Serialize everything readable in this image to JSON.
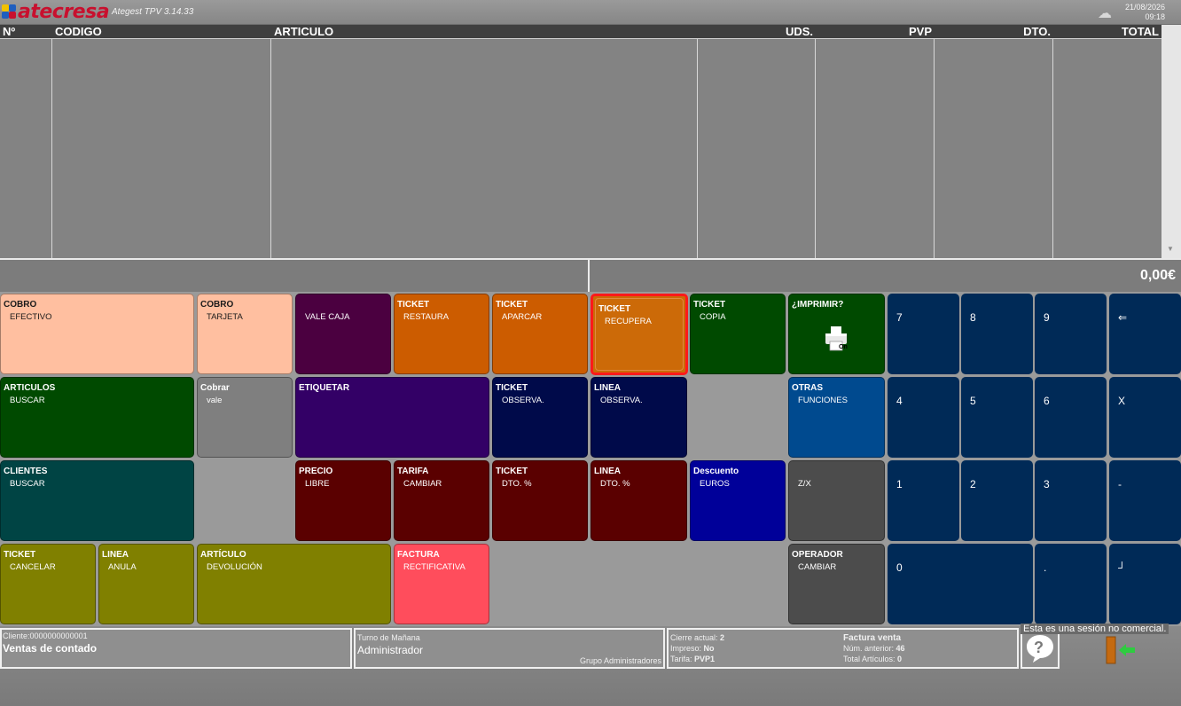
{
  "header": {
    "brand": "atecresa",
    "version": "Ategest TPV 3.14.33",
    "date": "21/08/2026",
    "time": "09:18"
  },
  "table": {
    "columns": [
      "Nº",
      "CODIGO",
      "ARTICULO",
      "UDS.",
      "PVP",
      "DTO.",
      "TOTAL"
    ]
  },
  "totals": {
    "total": "0,00€"
  },
  "buttons": {
    "cobro_efectivo": {
      "t1": "COBRO",
      "t2": "EFECTIVO",
      "color": "#ffbfa0"
    },
    "cobro_tarjeta": {
      "t1": "COBRO",
      "t2": "TARJETA",
      "color": "#ffbfa0"
    },
    "vale_caja": {
      "t1": "",
      "t2": "VALE CAJA",
      "color": "#4b0040"
    },
    "ticket_restaura": {
      "t1": "TICKET",
      "t2": "RESTAURA",
      "color": "#cc5c00"
    },
    "ticket_aparcar": {
      "t1": "TICKET",
      "t2": "APARCAR",
      "color": "#cc5c00"
    },
    "ticket_recupera": {
      "t1": "TICKET",
      "t2": "RECUPERA",
      "color": "#cc6a08"
    },
    "ticket_copia": {
      "t1": "TICKET",
      "t2": "COPIA",
      "color": "#004a00"
    },
    "imprimir": {
      "t1": "¿IMPRIMIR?",
      "t2": "",
      "color": "#004a00"
    },
    "articulos_buscar": {
      "t1": "ARTICULOS",
      "t2": "BUSCAR",
      "color": "#004a00"
    },
    "cobrar_vale": {
      "t1": "Cobrar",
      "t2": "vale",
      "color": "#7f7f7f"
    },
    "etiquetar": {
      "t1": "ETIQUETAR",
      "t2": "",
      "color": "#330066"
    },
    "ticket_observa": {
      "t1": "TICKET",
      "t2": "OBSERVA.",
      "color": "#000a4a"
    },
    "linea_observa": {
      "t1": "LINEA",
      "t2": "OBSERVA.",
      "color": "#000a4a"
    },
    "otras_funciones": {
      "t1": "OTRAS",
      "t2": "FUNCIONES",
      "color": "#004a8f"
    },
    "clientes_buscar": {
      "t1": "CLIENTES",
      "t2": "BUSCAR",
      "color": "#004444"
    },
    "precio_libre": {
      "t1": "PRECIO",
      "t2": "LIBRE",
      "color": "#5a0000"
    },
    "tarifa_cambiar": {
      "t1": "TARIFA",
      "t2": "CAMBIAR",
      "color": "#5a0000"
    },
    "ticket_dto": {
      "t1": "TICKET",
      "t2": "DTO. %",
      "color": "#5a0000"
    },
    "linea_dto": {
      "t1": "LINEA",
      "t2": "DTO. %",
      "color": "#5a0000"
    },
    "descuento_euros": {
      "t1": "Descuento",
      "t2": "EUROS",
      "color": "#000099"
    },
    "zx": {
      "t1": "",
      "t2": "Z/X",
      "color": "#4c4c4c"
    },
    "ticket_cancelar": {
      "t1": "TICKET",
      "t2": "CANCELAR",
      "color": "#808000"
    },
    "linea_anula": {
      "t1": "LINEA",
      "t2": "ANULA",
      "color": "#808000"
    },
    "articulo_devolucion": {
      "t1": "ARTÍCULO",
      "t2": "DEVOLUCIÓN",
      "color": "#808000"
    },
    "factura_rectificativa": {
      "t1": "FACTURA",
      "t2": "RECTIFICATIVA",
      "color": "#ff4d5c"
    },
    "operador_cambiar": {
      "t1": "OPERADOR",
      "t2": "CAMBIAR",
      "color": "#4c4c4c"
    }
  },
  "numpad": [
    "7",
    "8",
    "9",
    "⇐",
    "4",
    "5",
    "6",
    "X",
    "1",
    "2",
    "3",
    "-",
    "0",
    ".",
    "┘"
  ],
  "footer": {
    "client_label": "Cliente:0000000000001",
    "client_name": "Ventas de contado",
    "turno": "Turno de Mañana",
    "user": "Administrador",
    "group": "Grupo Administradores",
    "cierre_label": "Cierre actual:",
    "cierre_value": "2",
    "impreso_label": "Impreso:",
    "impreso_value": "No",
    "tarifa_label": "Tarifa:",
    "tarifa_value": "PVP1",
    "factura": "Factura venta",
    "num_anterior_label": "Núm. anterior:",
    "num_anterior_value": "46",
    "total_articulos_label": "Total Artículos:",
    "total_articulos_value": "0",
    "notice": "Esta es una sesión no comercial."
  }
}
